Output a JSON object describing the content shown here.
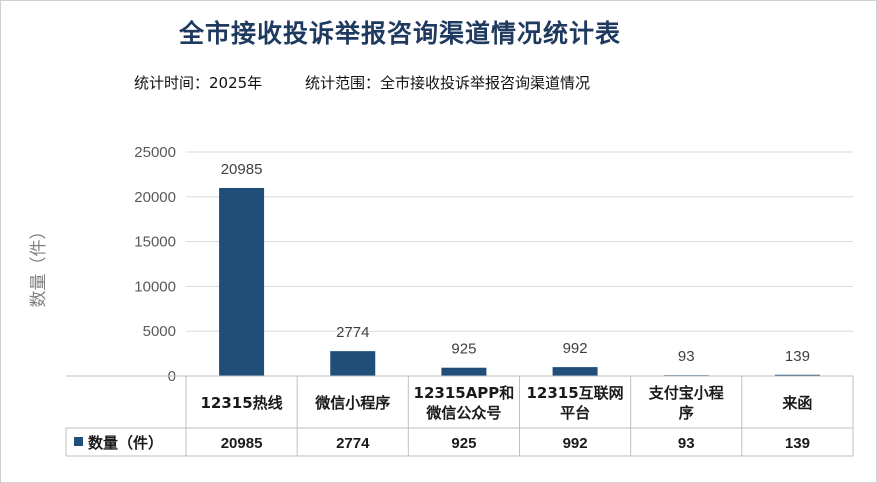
{
  "chart_data": {
    "type": "bar",
    "title": "全市接收投诉举报咨询渠道情况统计表",
    "subtitle_time": "统计时间：2025年",
    "subtitle_scope": "统计范围：全市接收投诉举报咨询渠道情况",
    "ylabel": "数量（件）",
    "ylim": [
      0,
      25000
    ],
    "yticks": [
      0,
      5000,
      10000,
      15000,
      20000,
      25000
    ],
    "grid": true,
    "categories": [
      [
        "12315热线"
      ],
      [
        "微信小程序"
      ],
      [
        "12315APP和",
        "微信公众号"
      ],
      [
        "12315互联网",
        "平台"
      ],
      [
        "支付宝小程",
        "序"
      ],
      [
        "来函"
      ]
    ],
    "series": [
      {
        "name": "数量（件）",
        "values": [
          20985,
          2774,
          925,
          992,
          93,
          139
        ]
      }
    ],
    "data_table": true,
    "bar_color": "#1f4e79"
  }
}
